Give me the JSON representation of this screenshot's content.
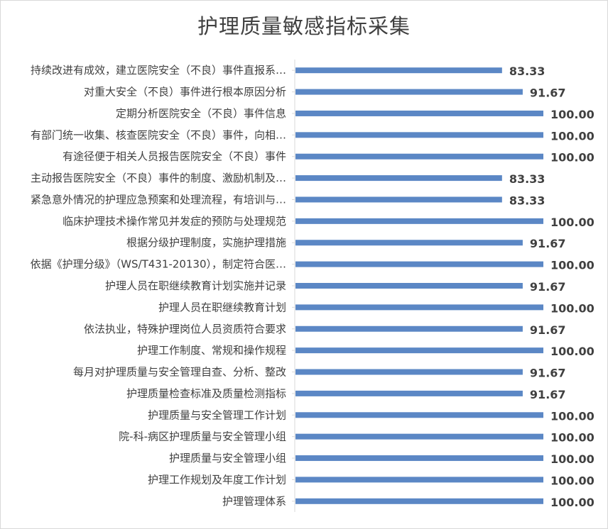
{
  "chart_data": {
    "type": "bar",
    "orientation": "horizontal",
    "title": "护理质量敏感指标采集",
    "categories": [
      "持续改进有成效，建立医院安全（不良）事件直报系…",
      "对重大安全（不良）事件进行根本原因分析",
      "定期分析医院安全（不良）事件信息",
      "有部门统一收集、核查医院安全（不良）事件，向相…",
      "有途径便于相关人员报告医院安全（不良）事件",
      "主动报告医院安全（不良）事件的制度、激励机制及…",
      "紧急意外情况的护理应急预案和处理流程，有培训与…",
      "临床护理技术操作常见并发症的预防与处理规范",
      "根据分级护理制度，实施护理措施",
      "依据《护理分级》（WS/T431-20130），制定符合医…",
      "护理人员在职继续教育计划实施并记录",
      "护理人员在职继续教育计划",
      "依法执业，特殊护理岗位人员资质符合要求",
      "护理工作制度、常规和操作规程",
      "每月对护理质量与安全管理自查、分析、整改",
      "护理质量检查标准及质量检测指标",
      "护理质量与安全管理工作计划",
      "院-科-病区护理质量与安全管理小组",
      "护理质量与安全管理小组",
      "护理工作规划及年度工作计划",
      "护理管理体系"
    ],
    "values": [
      83.33,
      91.67,
      100,
      100,
      100,
      83.33,
      83.33,
      100,
      91.67,
      100,
      91.67,
      100,
      91.67,
      100,
      91.67,
      91.67,
      100,
      100,
      100,
      100,
      100
    ],
    "value_labels": [
      "83.33",
      "91.67",
      "100.00",
      "100.00",
      "100.00",
      "83.33",
      "83.33",
      "100.00",
      "91.67",
      "100.00",
      "91.67",
      "100.00",
      "91.67",
      "100.00",
      "91.67",
      "91.67",
      "100.00",
      "100.00",
      "100.00",
      "100.00",
      "100.00"
    ],
    "xlim": [
      0,
      100
    ],
    "grid": false,
    "legend": "none",
    "bar_color": "#5b87c5"
  }
}
